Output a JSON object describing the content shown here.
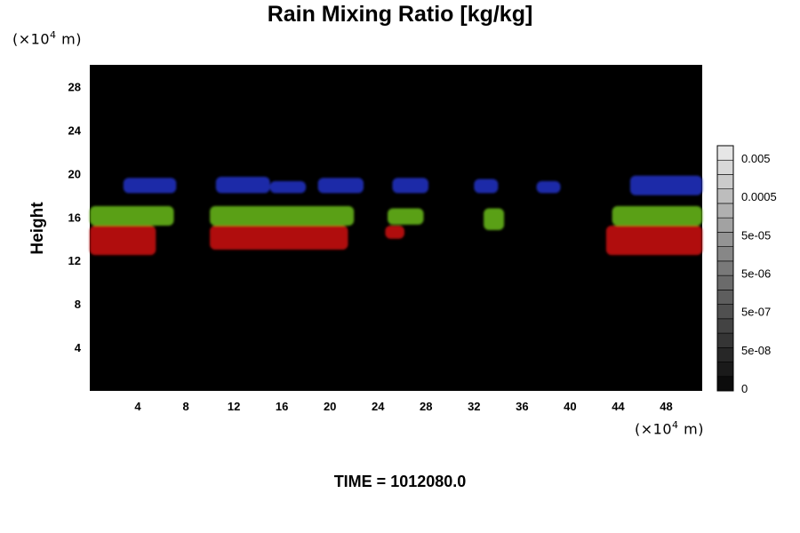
{
  "chart_data": {
    "type": "heatmap",
    "title": "Rain Mixing Ratio [kg/kg]",
    "ylabel": "Height",
    "x_unit": {
      "prefix": "(×10",
      "exp": "4",
      "suffix": " m)"
    },
    "y_unit": {
      "prefix": "(×10",
      "exp": "4",
      "suffix": " m)"
    },
    "x_ticks": [
      "4",
      "8",
      "12",
      "16",
      "20",
      "24",
      "28",
      "32",
      "36",
      "40",
      "44",
      "48"
    ],
    "y_ticks": [
      "4",
      "8",
      "12",
      "16",
      "20",
      "24",
      "28"
    ],
    "xlim": [
      0,
      51
    ],
    "ylim": [
      0,
      30
    ],
    "background_color": "#000000",
    "layer_colors": {
      "upper": "#1f2aa8",
      "middle": "#5aa019",
      "lower": "#b01010"
    },
    "features": [
      {
        "layer": "upper",
        "x": [
          2.8,
          7.2
        ],
        "y": [
          18.2,
          19.6
        ]
      },
      {
        "layer": "upper",
        "x": [
          10.5,
          15.0
        ],
        "y": [
          18.2,
          19.7
        ]
      },
      {
        "layer": "upper",
        "x": [
          15.0,
          18.0
        ],
        "y": [
          18.2,
          19.3
        ]
      },
      {
        "layer": "upper",
        "x": [
          19.0,
          22.8
        ],
        "y": [
          18.2,
          19.6
        ]
      },
      {
        "layer": "upper",
        "x": [
          25.2,
          28.2
        ],
        "y": [
          18.2,
          19.6
        ]
      },
      {
        "layer": "upper",
        "x": [
          32.0,
          34.0
        ],
        "y": [
          18.2,
          19.5
        ]
      },
      {
        "layer": "upper",
        "x": [
          37.2,
          39.2
        ],
        "y": [
          18.2,
          19.3
        ]
      },
      {
        "layer": "upper",
        "x": [
          45.0,
          51.0
        ],
        "y": [
          18.0,
          19.8
        ]
      },
      {
        "layer": "middle",
        "x": [
          0.0,
          7.0
        ],
        "y": [
          15.2,
          17.0
        ]
      },
      {
        "layer": "middle",
        "x": [
          10.0,
          22.0
        ],
        "y": [
          15.2,
          17.0
        ]
      },
      {
        "layer": "middle",
        "x": [
          24.8,
          27.8
        ],
        "y": [
          15.3,
          16.8
        ]
      },
      {
        "layer": "middle",
        "x": [
          32.8,
          34.5
        ],
        "y": [
          14.8,
          16.8
        ]
      },
      {
        "layer": "middle",
        "x": [
          43.5,
          51.0
        ],
        "y": [
          15.2,
          17.0
        ]
      },
      {
        "layer": "lower",
        "x": [
          0.0,
          5.5
        ],
        "y": [
          12.5,
          15.2
        ]
      },
      {
        "layer": "lower",
        "x": [
          10.0,
          21.5
        ],
        "y": [
          13.0,
          15.2
        ]
      },
      {
        "layer": "lower",
        "x": [
          24.6,
          26.2
        ],
        "y": [
          14.0,
          15.2
        ]
      },
      {
        "layer": "lower",
        "x": [
          43.0,
          51.0
        ],
        "y": [
          12.5,
          15.2
        ]
      }
    ],
    "colorbar": {
      "labels": [
        "0.005",
        "0.0005",
        "5e-05",
        "5e-06",
        "5e-07",
        "5e-08",
        "0"
      ]
    }
  },
  "time_label": "TIME = 1012080.0"
}
